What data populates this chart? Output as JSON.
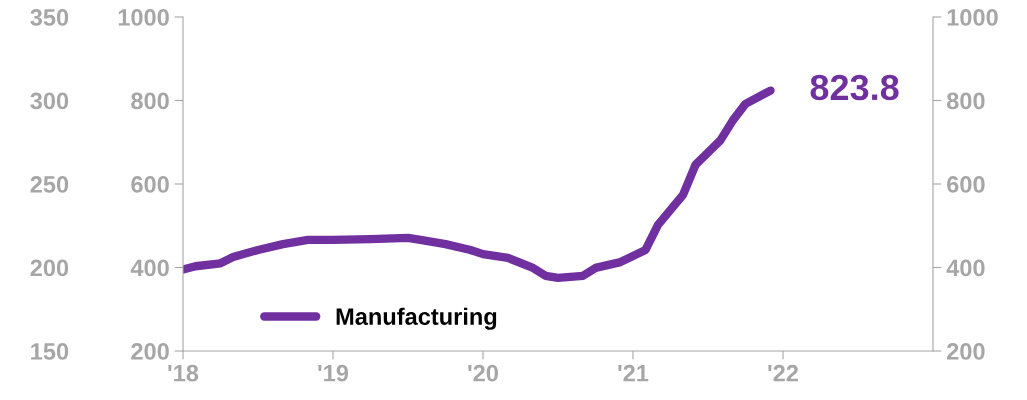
{
  "chart_data": {
    "type": "line",
    "x": [
      "2018-01",
      "2018-02",
      "2018-04",
      "2018-05",
      "2018-07",
      "2018-09",
      "2018-11",
      "2019-01",
      "2019-04",
      "2019-07",
      "2019-08",
      "2019-10",
      "2019-12",
      "2020-01",
      "2020-03",
      "2020-05",
      "2020-06",
      "2020-07",
      "2020-09",
      "2020-10",
      "2020-12",
      "2021-02",
      "2021-03",
      "2021-05",
      "2021-06",
      "2021-08",
      "2021-09",
      "2021-10",
      "2021-12"
    ],
    "series": [
      {
        "name": "Manufacturing",
        "color": "#7030a0",
        "values": [
          395,
          403,
          410,
          425,
          442,
          456,
          466,
          466,
          468,
          471,
          466,
          456,
          442,
          432,
          423,
          399,
          380,
          375,
          380,
          399,
          413,
          442,
          502,
          574,
          646,
          705,
          753,
          792,
          823.8
        ]
      }
    ],
    "xlim": [
      "2018-01",
      "2023-01"
    ],
    "xticks": [
      {
        "value": "2018-01",
        "label": "'18"
      },
      {
        "value": "2019-01",
        "label": "'19"
      },
      {
        "value": "2020-01",
        "label": "'20"
      },
      {
        "value": "2021-01",
        "label": "'21"
      },
      {
        "value": "2022-01",
        "label": "'22"
      }
    ],
    "ylim": [
      200,
      1000
    ],
    "yticks": [
      200,
      400,
      600,
      800,
      1000
    ],
    "y2lim": [
      200,
      1000
    ],
    "y2ticks": [
      200,
      400,
      600,
      800,
      1000
    ],
    "y3lim": [
      150,
      350
    ],
    "y3ticks": [
      150,
      200,
      250,
      300,
      350
    ],
    "annotations": [
      {
        "text": "823.8",
        "x": "2021-12",
        "y": 823.8
      }
    ],
    "legend": "bottom left",
    "grid": false,
    "marker": "none",
    "line_style": "solid"
  }
}
